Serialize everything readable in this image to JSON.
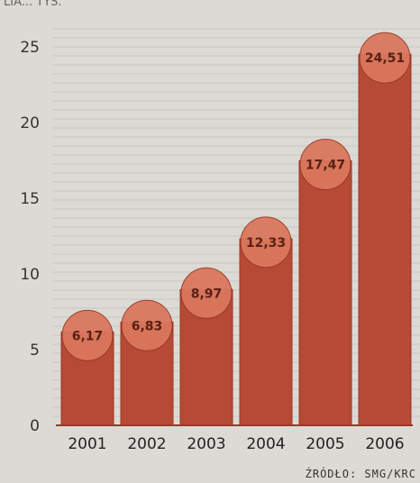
{
  "header_fragment": "LIA... TYS.",
  "source": "ŹRÓDŁO: SMG/KRC",
  "colors": {
    "bar": "#b64a35",
    "bar_dark": "#9a3826",
    "bubble": "#d9775d",
    "background": "#dcdad5",
    "grid": "#c8c6c1"
  },
  "chart_data": {
    "type": "bar",
    "title": "",
    "xlabel": "",
    "ylabel": "",
    "categories": [
      "2001",
      "2002",
      "2003",
      "2004",
      "2005",
      "2006"
    ],
    "values": [
      6.17,
      6.83,
      8.97,
      12.33,
      17.47,
      24.51
    ],
    "value_labels": [
      "6,17",
      "6,83",
      "8,97",
      "12,33",
      "17,47",
      "24,51"
    ],
    "ylim": [
      0,
      25
    ],
    "yticks": [
      0,
      5,
      10,
      15,
      20,
      25
    ],
    "grid": true,
    "legend": "none"
  }
}
